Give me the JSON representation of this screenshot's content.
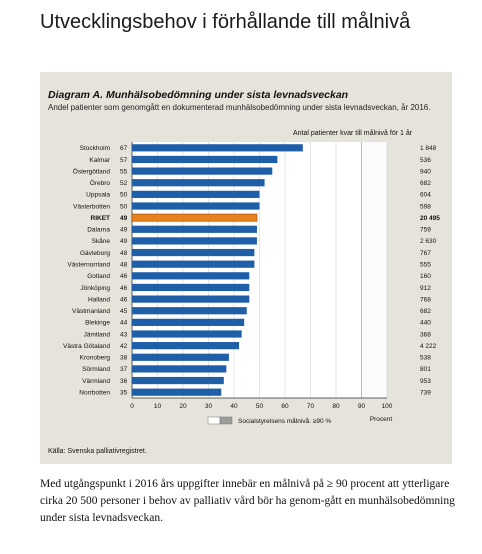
{
  "page": {
    "title": "Utvecklingsbehov i förhållande till målnivå",
    "body_text": "Med utgångspunkt i 2016 års uppgifter innebär en målnivå på ≥ 90 procent att ytterligare cirka 20 500 personer i behov av palliativ vård bör ha genom-gått en munhälsobedömning under sista levnadsveckan."
  },
  "chart_data": {
    "type": "bar",
    "orientation": "horizontal",
    "title": "Diagram A. Munhälsobedömning under sista levnadsveckan",
    "subtitle": "Andel patienter som genomgått en dokumenterad munhälsobedömning under sista levnadsveckan, år 2016.",
    "count_header": "Antal patienter kvar till målnivå för 1 år",
    "xlabel": "Procent",
    "xlim": [
      0,
      100
    ],
    "xticks": [
      0,
      10,
      20,
      30,
      40,
      50,
      60,
      70,
      80,
      90,
      100
    ],
    "target_value": 90,
    "legend_label": "Socialstyrelsens målnivå: ≥90 %",
    "source": "Källa: Svenska palliativregistret.",
    "colors": {
      "bar": "#1f5fa8",
      "highlight": "#e8821e",
      "target_zone": "#ffffff",
      "panel": "#e6e3da"
    },
    "categories": [
      "Stockholm",
      "Kalmar",
      "Östergötland",
      "Örebro",
      "Uppsala",
      "Västerbotten",
      "RIKET",
      "Dalarna",
      "Skåne",
      "Gävleborg",
      "Västernorrland",
      "Gotland",
      "Jönköping",
      "Halland",
      "Västmanland",
      "Blekinge",
      "Jämtland",
      "Västra Götaland",
      "Kronoberg",
      "Sörmland",
      "Värmland",
      "Norrbotten"
    ],
    "value_labels": [
      "67",
      "57",
      "55",
      "52",
      "50",
      "50",
      "49",
      "49",
      "49",
      "48",
      "48",
      "46",
      "46",
      "46",
      "45",
      "44",
      "43",
      "42",
      "38",
      "37",
      "36",
      "35"
    ],
    "values": [
      67,
      57,
      55,
      52,
      50,
      50,
      49,
      49,
      49,
      48,
      48,
      46,
      46,
      46,
      45,
      44,
      43,
      42,
      38,
      37,
      36,
      35
    ],
    "counts": [
      "1 848",
      "536",
      "940",
      "682",
      "604",
      "598",
      "20 495",
      "759",
      "2 630",
      "767",
      "555",
      "160",
      "912",
      "768",
      "682",
      "440",
      "368",
      "4 222",
      "538",
      "801",
      "953",
      "739"
    ],
    "highlight_index": 6
  }
}
